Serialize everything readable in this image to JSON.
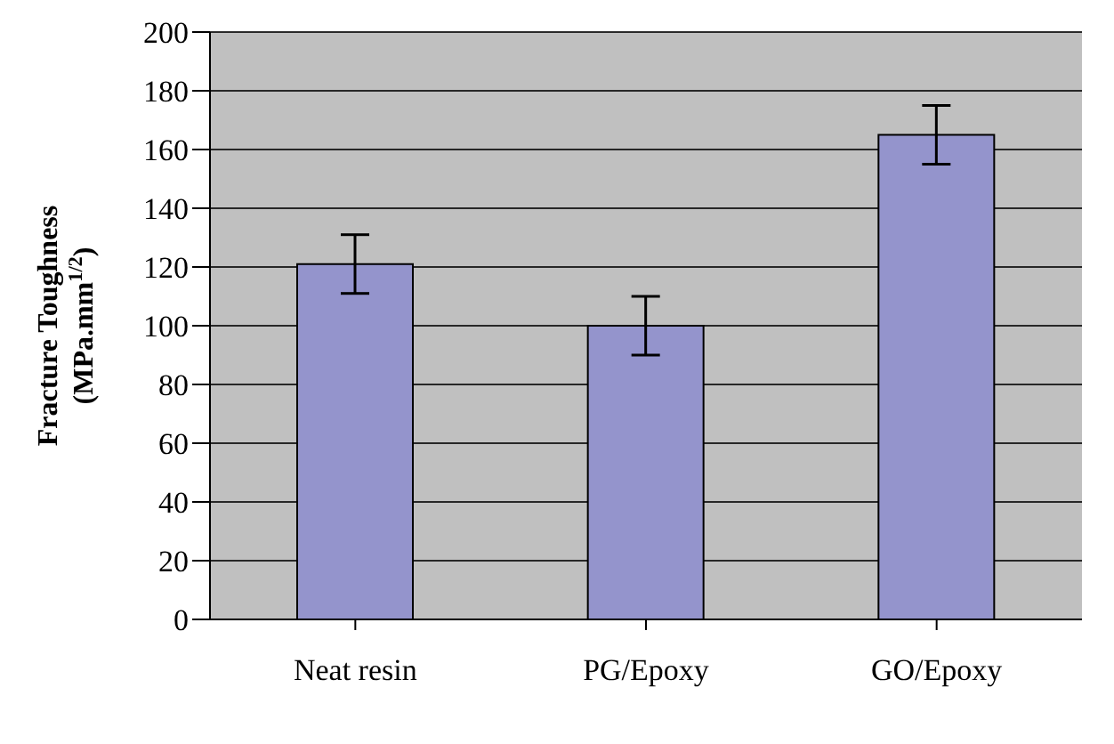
{
  "chart_data": {
    "type": "bar",
    "ylabel": "Fracture Toughness (MPa.mm$^{1/2}$)",
    "categories": [
      "Neat resin",
      "PG/Epoxy",
      "GO/Epoxy"
    ],
    "values": [
      121,
      100,
      165
    ],
    "errors": [
      10,
      10,
      10
    ],
    "color": "#9494cc",
    "ylim": [
      0,
      200
    ],
    "yticks": [
      0,
      20,
      40,
      60,
      80,
      100,
      120,
      140,
      160,
      180,
      200
    ],
    "grid": "y",
    "legend": false
  }
}
